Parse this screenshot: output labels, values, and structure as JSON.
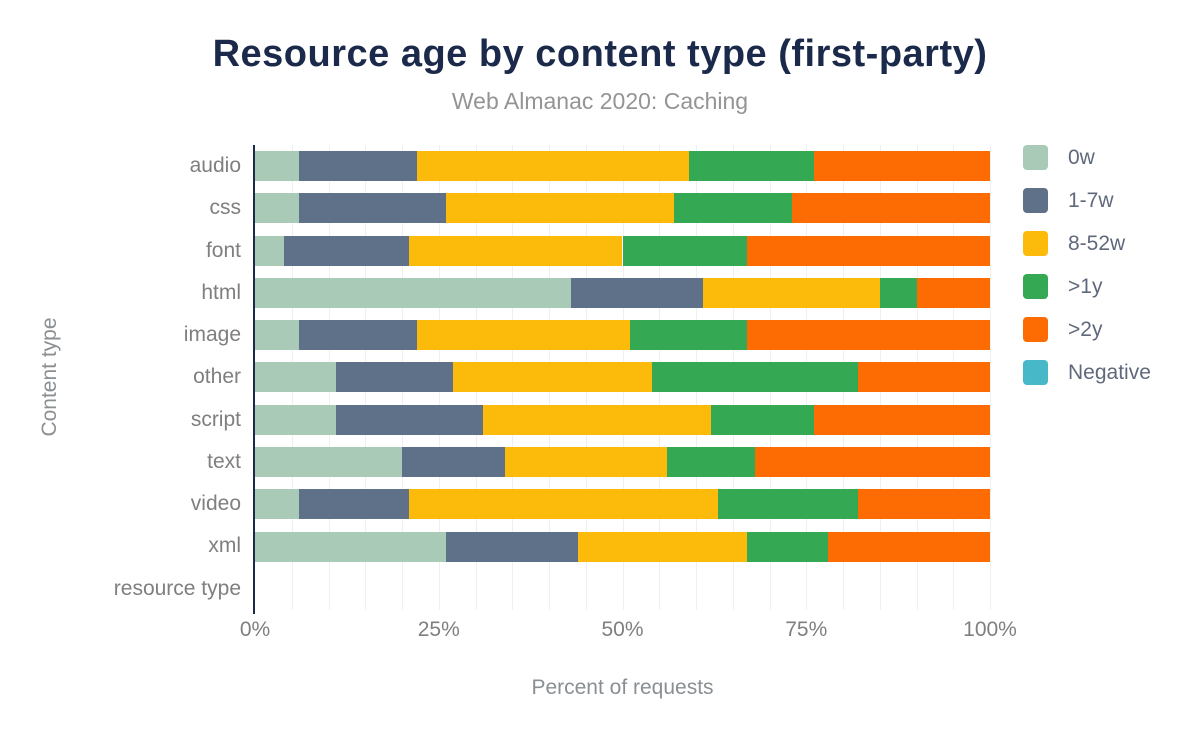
{
  "page": {
    "background": "#ffffff"
  },
  "chart_data": {
    "type": "bar",
    "orientation": "horizontal",
    "stacked": true,
    "title": "Resource age by content type (first-party)",
    "subtitle": "Web Almanac 2020: Caching",
    "xlabel": "Percent of requests",
    "ylabel": "Content type",
    "xlim": [
      0,
      100
    ],
    "x_ticks": [
      "0%",
      "25%",
      "50%",
      "75%",
      "100%"
    ],
    "x_tick_values": [
      0,
      25,
      50,
      75,
      100
    ],
    "grid": {
      "show_vertical": true,
      "step_percent": 5,
      "color": "#efefef"
    },
    "legend_position": "right",
    "axis_color": "#1b2a4a",
    "categories": [
      "audio",
      "css",
      "font",
      "html",
      "image",
      "other",
      "script",
      "text",
      "video",
      "xml",
      "resource type"
    ],
    "series": [
      {
        "name": "0w",
        "color": "#a8cab7",
        "values": [
          6,
          6,
          4,
          43,
          6,
          11,
          11,
          20,
          6,
          26,
          0
        ]
      },
      {
        "name": "1-7w",
        "color": "#5e7189",
        "values": [
          16,
          20,
          17,
          18,
          16,
          16,
          20,
          14,
          15,
          18,
          0
        ]
      },
      {
        "name": "8-52w",
        "color": "#fcba0b",
        "values": [
          37,
          31,
          29,
          24,
          29,
          27,
          31,
          22,
          42,
          23,
          0
        ]
      },
      {
        "name": ">1y",
        "color": "#34a853",
        "values": [
          17,
          16,
          17,
          5,
          16,
          28,
          14,
          12,
          19,
          11,
          0
        ]
      },
      {
        "name": ">2y",
        "color": "#fd6b03",
        "values": [
          24,
          27,
          33,
          10,
          33,
          18,
          24,
          32,
          18,
          22,
          0
        ]
      },
      {
        "name": "Negative",
        "color": "#47b8c8",
        "values": [
          0,
          0,
          0,
          0,
          0,
          0,
          0,
          0,
          0,
          0,
          0
        ]
      }
    ]
  }
}
